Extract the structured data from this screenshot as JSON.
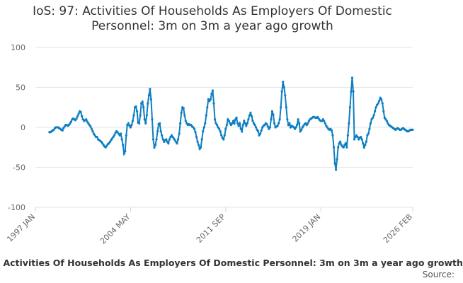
{
  "chart_data": {
    "type": "line",
    "title": "IoS: 97: Activities Of Households As Employers Of Domestic Personnel: 3m on 3m a year ago growth",
    "caption": "IoS: 97: Activities Of Households As Employers Of Domestic Personnel: 3m on 3m a year ago growth",
    "source": "Source:",
    "categories": [
      "1997 JAN",
      null,
      null,
      null,
      null,
      null,
      null,
      null,
      null,
      null,
      null,
      null,
      null,
      null,
      null,
      null,
      null,
      null,
      null,
      null,
      null,
      null,
      null,
      null,
      null,
      null,
      null,
      null,
      null,
      null,
      null,
      null,
      null,
      null,
      null,
      null,
      null,
      null,
      null,
      null,
      null,
      null,
      null,
      null,
      null,
      null,
      null,
      null,
      null,
      null,
      null,
      null,
      null,
      null,
      null,
      null,
      null,
      null,
      null,
      null,
      null,
      null,
      null,
      null,
      null,
      null,
      null,
      null,
      null,
      null,
      null,
      null,
      null,
      null,
      null,
      null,
      null,
      null,
      null,
      null,
      null,
      null,
      null,
      null,
      null,
      null,
      null,
      null,
      "2004 MAY",
      null,
      null,
      null,
      null,
      null,
      null,
      null,
      null,
      null,
      null,
      null,
      null,
      null,
      null,
      null,
      null,
      null,
      null,
      null,
      null,
      null,
      null,
      null,
      null,
      null,
      null,
      null,
      null,
      null,
      null,
      null,
      null,
      null,
      null,
      null,
      null,
      null,
      null,
      null,
      null,
      null,
      null,
      null,
      null,
      null,
      null,
      null,
      null,
      null,
      null,
      null,
      null,
      null,
      null,
      null,
      null,
      null,
      null,
      null,
      null,
      null,
      null,
      null,
      null,
      null,
      null,
      null,
      null,
      null,
      null,
      null,
      null,
      null,
      null,
      null,
      null,
      null,
      null,
      null,
      null,
      null,
      null,
      null,
      null,
      null,
      null,
      null,
      "2011 SEP",
      null,
      null,
      null,
      null,
      null,
      null,
      null,
      null,
      null,
      null,
      null,
      null,
      null,
      null,
      null,
      null,
      null,
      null,
      null,
      null,
      null,
      null,
      null,
      null,
      null,
      null,
      null,
      null,
      null,
      null,
      null,
      null,
      null,
      null,
      null,
      null,
      null,
      null,
      null,
      null,
      null,
      null,
      null,
      null,
      null,
      null,
      null,
      null,
      null,
      null,
      null,
      null,
      null,
      null,
      null,
      null,
      null,
      null,
      null,
      null,
      null,
      null,
      null,
      null,
      null,
      null,
      null,
      null,
      null,
      null,
      null,
      null,
      null,
      null,
      null,
      null,
      null,
      null,
      null,
      null,
      null,
      null,
      null,
      null,
      null,
      null,
      null,
      "2019 JAN",
      null,
      null,
      null,
      null,
      null,
      null,
      null,
      null,
      null,
      null,
      null,
      null,
      null,
      null,
      null,
      null,
      null,
      null,
      null,
      null,
      null,
      null,
      null,
      null,
      null,
      null,
      null,
      null,
      null,
      null,
      null,
      null,
      null,
      null,
      null,
      null,
      null,
      null,
      null,
      null,
      null,
      null,
      null,
      null,
      null,
      null,
      null,
      null,
      null,
      null,
      null,
      null,
      null,
      null,
      null,
      null,
      null,
      null,
      null,
      null,
      null,
      null,
      null,
      null,
      null,
      null,
      null,
      null,
      null,
      null,
      null,
      null,
      null,
      null,
      null,
      null,
      null,
      null,
      null,
      null,
      null,
      null,
      null,
      null,
      "2026 FEB"
    ],
    "series": [
      {
        "name": "IoS: 97",
        "color": "#0e7ec2",
        "values": [
          null,
          null,
          null,
          null,
          null,
          null,
          null,
          null,
          null,
          null,
          null,
          null,
          null,
          -6,
          -6,
          -5,
          -4,
          -3,
          -1,
          0,
          0,
          0,
          -1,
          -2,
          -3,
          -4,
          -1,
          1,
          3,
          3,
          2,
          3,
          5,
          7,
          10,
          11,
          10,
          9,
          11,
          14,
          17,
          20,
          19,
          14,
          10,
          8,
          9,
          10,
          7,
          5,
          3,
          1,
          -2,
          -5,
          -8,
          -10,
          -12,
          -12,
          -15,
          -16,
          -17,
          -18,
          -20,
          -22,
          -24,
          -25,
          -23,
          -21,
          -20,
          -18,
          -16,
          -14,
          -12,
          -10,
          -7,
          -5,
          -6,
          -8,
          -10,
          -8,
          -15,
          -22,
          -33,
          -30,
          -10,
          3,
          5,
          2,
          0,
          3,
          8,
          15,
          25,
          26,
          20,
          6,
          5,
          15,
          30,
          32,
          25,
          10,
          5,
          15,
          30,
          40,
          48,
          35,
          10,
          -15,
          -25,
          -22,
          -15,
          -5,
          4,
          5,
          -5,
          -10,
          -15,
          -18,
          -16,
          -15,
          -18,
          -20,
          -15,
          -12,
          -10,
          -12,
          -14,
          -16,
          -18,
          -20,
          -15,
          -8,
          5,
          18,
          25,
          24,
          15,
          8,
          5,
          3,
          4,
          3,
          3,
          1,
          0,
          -2,
          -6,
          -12,
          -18,
          -22,
          -27,
          -25,
          -15,
          -5,
          0,
          5,
          15,
          25,
          35,
          33,
          35,
          42,
          46,
          30,
          10,
          5,
          3,
          0,
          -2,
          -5,
          -10,
          -13,
          -15,
          -10,
          -2,
          3,
          10,
          8,
          5,
          3,
          5,
          8,
          5,
          10,
          12,
          5,
          2,
          5,
          -2,
          -5,
          3,
          8,
          5,
          2,
          5,
          10,
          15,
          18,
          14,
          8,
          5,
          3,
          0,
          -3,
          -5,
          -10,
          -8,
          -4,
          0,
          2,
          3,
          5,
          4,
          1,
          -2,
          0,
          10,
          20,
          16,
          5,
          0,
          1,
          2,
          5,
          10,
          25,
          45,
          57,
          50,
          40,
          25,
          10,
          3,
          5,
          0,
          2,
          1,
          0,
          -2,
          0,
          3,
          10,
          5,
          -5,
          -3,
          0,
          2,
          4,
          5,
          3,
          5,
          8,
          10,
          11,
          12,
          13,
          13,
          12,
          12,
          13,
          11,
          9,
          8,
          8,
          10,
          8,
          5,
          2,
          0,
          -2,
          -3,
          -2,
          -4,
          -10,
          -25,
          -45,
          -53,
          -40,
          -25,
          -20,
          -18,
          -22,
          -24,
          -25,
          -22,
          -20,
          -25,
          -10,
          5,
          25,
          45,
          62,
          45,
          -15,
          -12,
          -10,
          -12,
          -15,
          -13,
          -12,
          -15,
          -20,
          -25,
          -22,
          -18,
          -10,
          -8,
          -2,
          5,
          10,
          12,
          15,
          20,
          25,
          28,
          30,
          33,
          37,
          35,
          30,
          20,
          12,
          10,
          8,
          5,
          3,
          2,
          1,
          0,
          -1,
          -2,
          -3,
          -2,
          -1,
          -2,
          -3,
          -3,
          -2,
          -1,
          -2,
          -3,
          -4,
          -5,
          -5,
          -4,
          -3,
          -3,
          -3
        ]
      }
    ],
    "ylim": [
      -100,
      100
    ],
    "yticks": [
      -100,
      -50,
      0,
      50,
      100
    ],
    "grid": true
  }
}
